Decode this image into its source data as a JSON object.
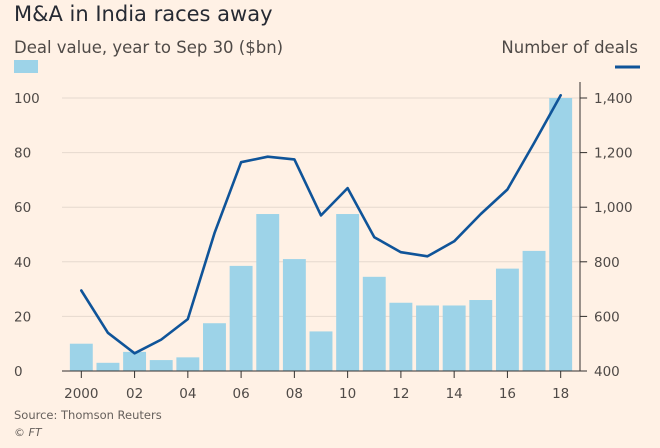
{
  "chart_data": {
    "type": "bar+line",
    "title": "M&A in India races away",
    "left_series_label": "Deal value, year to Sep 30 ($bn)",
    "right_series_label": "Number of deals",
    "source": "Source: Thomson Reuters",
    "credit": "© FT",
    "x": [
      2000,
      2001,
      2002,
      2003,
      2004,
      2005,
      2006,
      2007,
      2008,
      2009,
      2010,
      2011,
      2012,
      2013,
      2014,
      2015,
      2016,
      2017,
      2018
    ],
    "x_tick_values": [
      2000,
      2002,
      2004,
      2006,
      2008,
      2010,
      2012,
      2014,
      2016,
      2018
    ],
    "x_tick_labels": [
      "2000",
      "02",
      "04",
      "06",
      "08",
      "10",
      "12",
      "14",
      "16",
      "18"
    ],
    "y_left_ticks": [
      "0",
      "20",
      "40",
      "60",
      "80",
      "100"
    ],
    "y_right_ticks": [
      "400",
      "600",
      "800",
      "1,000",
      "1,200",
      "1,400"
    ],
    "ylim_left": [
      0,
      100
    ],
    "ylim_right": [
      400,
      1400
    ],
    "series": [
      {
        "name": "Deal value, year to Sep 30 ($bn)",
        "type": "bar",
        "axis": "left",
        "color": "#9dd3e8",
        "values": [
          10,
          3,
          7,
          4,
          5,
          17.5,
          38.5,
          57.5,
          41,
          14.5,
          57.5,
          34.5,
          25,
          24,
          24,
          26,
          37.5,
          44,
          100
        ]
      },
      {
        "name": "Number of deals",
        "type": "line",
        "axis": "right",
        "color": "#0f5499",
        "values": [
          695,
          540,
          465,
          515,
          590,
          905,
          1165,
          1185,
          1175,
          970,
          1070,
          890,
          835,
          820,
          875,
          975,
          1065,
          1235,
          1410
        ]
      }
    ],
    "grid": "horizontal"
  }
}
